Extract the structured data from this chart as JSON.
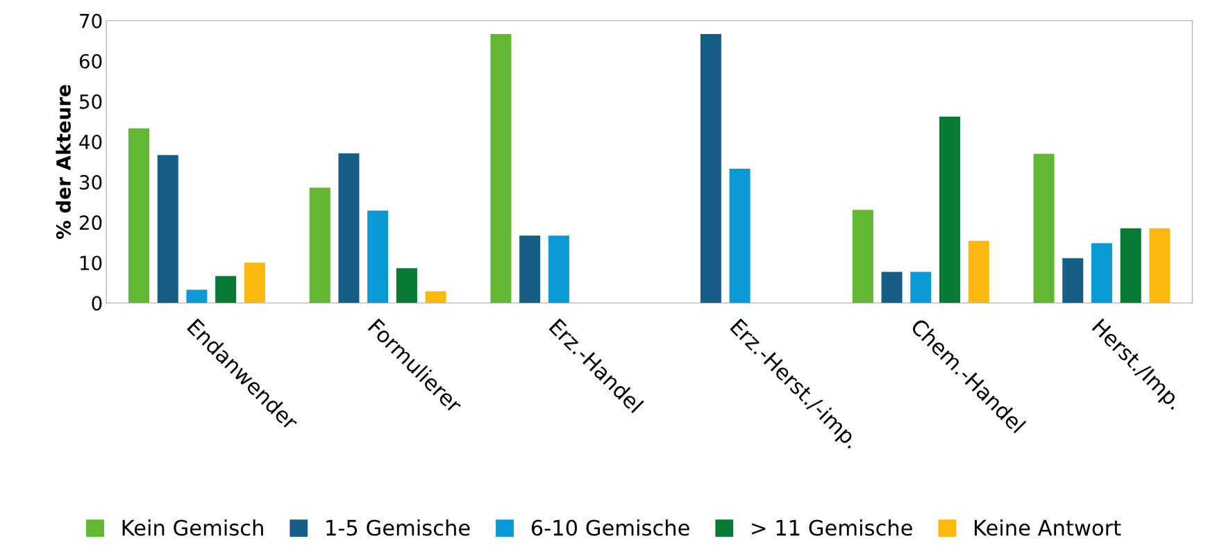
{
  "chart_data": {
    "type": "bar",
    "ylabel": "% der Akteure",
    "categories": [
      "Endanwender",
      "Formulierer",
      "Erz.-Handel",
      "Erz.-Herst./-imp.",
      "Chem.-Handel",
      "Herst./Imp."
    ],
    "series": [
      {
        "name": "Kein Gemisch",
        "color": "#62b733",
        "values": [
          43.3,
          28.6,
          66.7,
          0,
          23.1,
          37.0
        ]
      },
      {
        "name": "1-5 Gemische",
        "color": "#175e87",
        "values": [
          36.7,
          37.1,
          16.7,
          66.7,
          7.7,
          11.1
        ]
      },
      {
        "name": "6-10 Gemische",
        "color": "#0b9ad6",
        "values": [
          3.3,
          22.9,
          16.7,
          33.3,
          7.7,
          14.8
        ]
      },
      {
        "name": "> 11 Gemische",
        "color": "#077a36",
        "values": [
          6.7,
          8.6,
          0,
          0,
          46.2,
          18.5
        ]
      },
      {
        "name": "Keine Antwort",
        "color": "#fbb90f",
        "values": [
          10.0,
          2.9,
          0,
          0,
          15.4,
          18.5
        ]
      }
    ],
    "ylim": [
      0,
      70
    ],
    "yticks": [
      0,
      10,
      20,
      30,
      40,
      50,
      60,
      70
    ],
    "grid": false,
    "legend": "bottom"
  }
}
